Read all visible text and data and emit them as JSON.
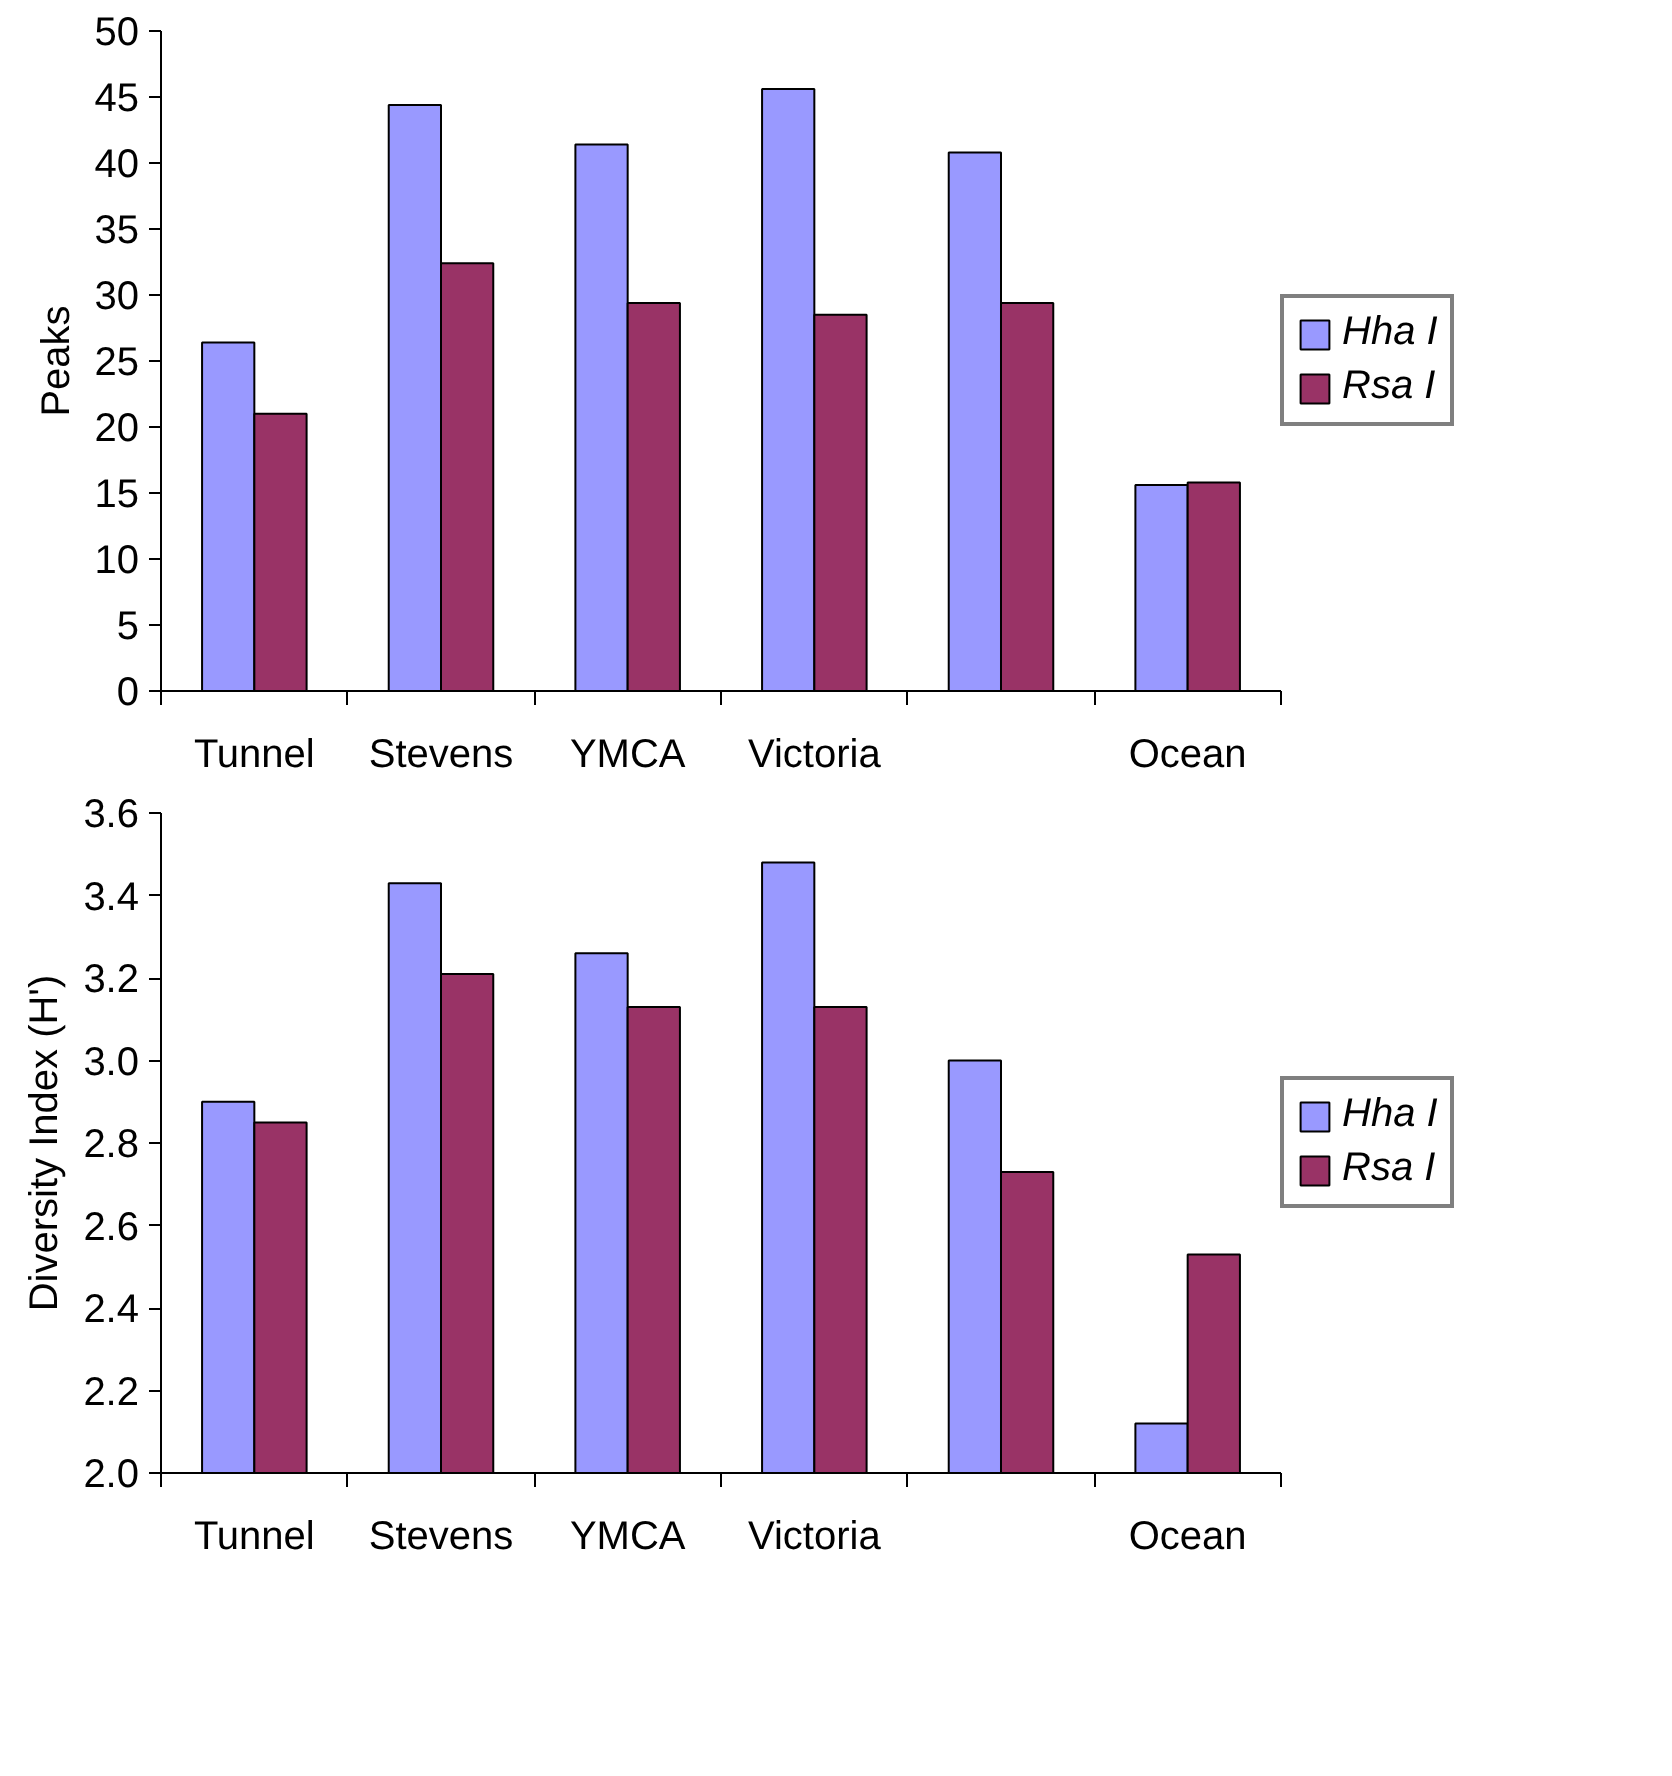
{
  "chart_data": [
    {
      "type": "bar",
      "ylabel": "Peaks",
      "categories": [
        "Tunnel",
        "Stevens",
        "YMCA",
        "Victoria",
        null,
        "Ocean"
      ],
      "series": [
        {
          "name": "Hha I",
          "color": "#9999ff",
          "values": [
            26.4,
            44.4,
            41.4,
            45.6,
            40.8,
            15.6
          ]
        },
        {
          "name": "Rsa I",
          "color": "#993366",
          "values": [
            21.0,
            32.4,
            29.4,
            28.5,
            29.4,
            15.8
          ]
        }
      ],
      "ylim": [
        0,
        50
      ],
      "yticks": [
        0,
        5,
        10,
        15,
        20,
        25,
        30,
        35,
        40,
        45,
        50
      ],
      "grid": false,
      "legend": "right"
    },
    {
      "type": "bar",
      "ylabel": "Diversity Index (H')",
      "categories": [
        "Tunnel",
        "Stevens",
        "YMCA",
        "Victoria",
        null,
        "Ocean"
      ],
      "series": [
        {
          "name": "Hha I",
          "color": "#9999ff",
          "values": [
            2.9,
            3.43,
            3.26,
            3.48,
            3.0,
            2.12
          ]
        },
        {
          "name": "Rsa I",
          "color": "#993366",
          "values": [
            2.85,
            3.21,
            3.13,
            3.13,
            2.73,
            2.53
          ]
        }
      ],
      "ylim": [
        2.0,
        3.6
      ],
      "yticks": [
        {
          "value": 2.0,
          "label": "2.0"
        },
        {
          "value": 2.2,
          "label": "2.2"
        },
        {
          "value": 2.4,
          "label": "2.4"
        },
        {
          "value": 2.6,
          "label": "2.6"
        },
        {
          "value": 2.8,
          "label": "2.8"
        },
        {
          "value": 3.0,
          "label": "3.0"
        },
        {
          "value": 3.2,
          "label": "3.2"
        },
        {
          "value": 3.4,
          "label": "3.4"
        },
        {
          "value": 3.6,
          "label": "3.6"
        }
      ],
      "grid": false,
      "legend": "right"
    }
  ]
}
